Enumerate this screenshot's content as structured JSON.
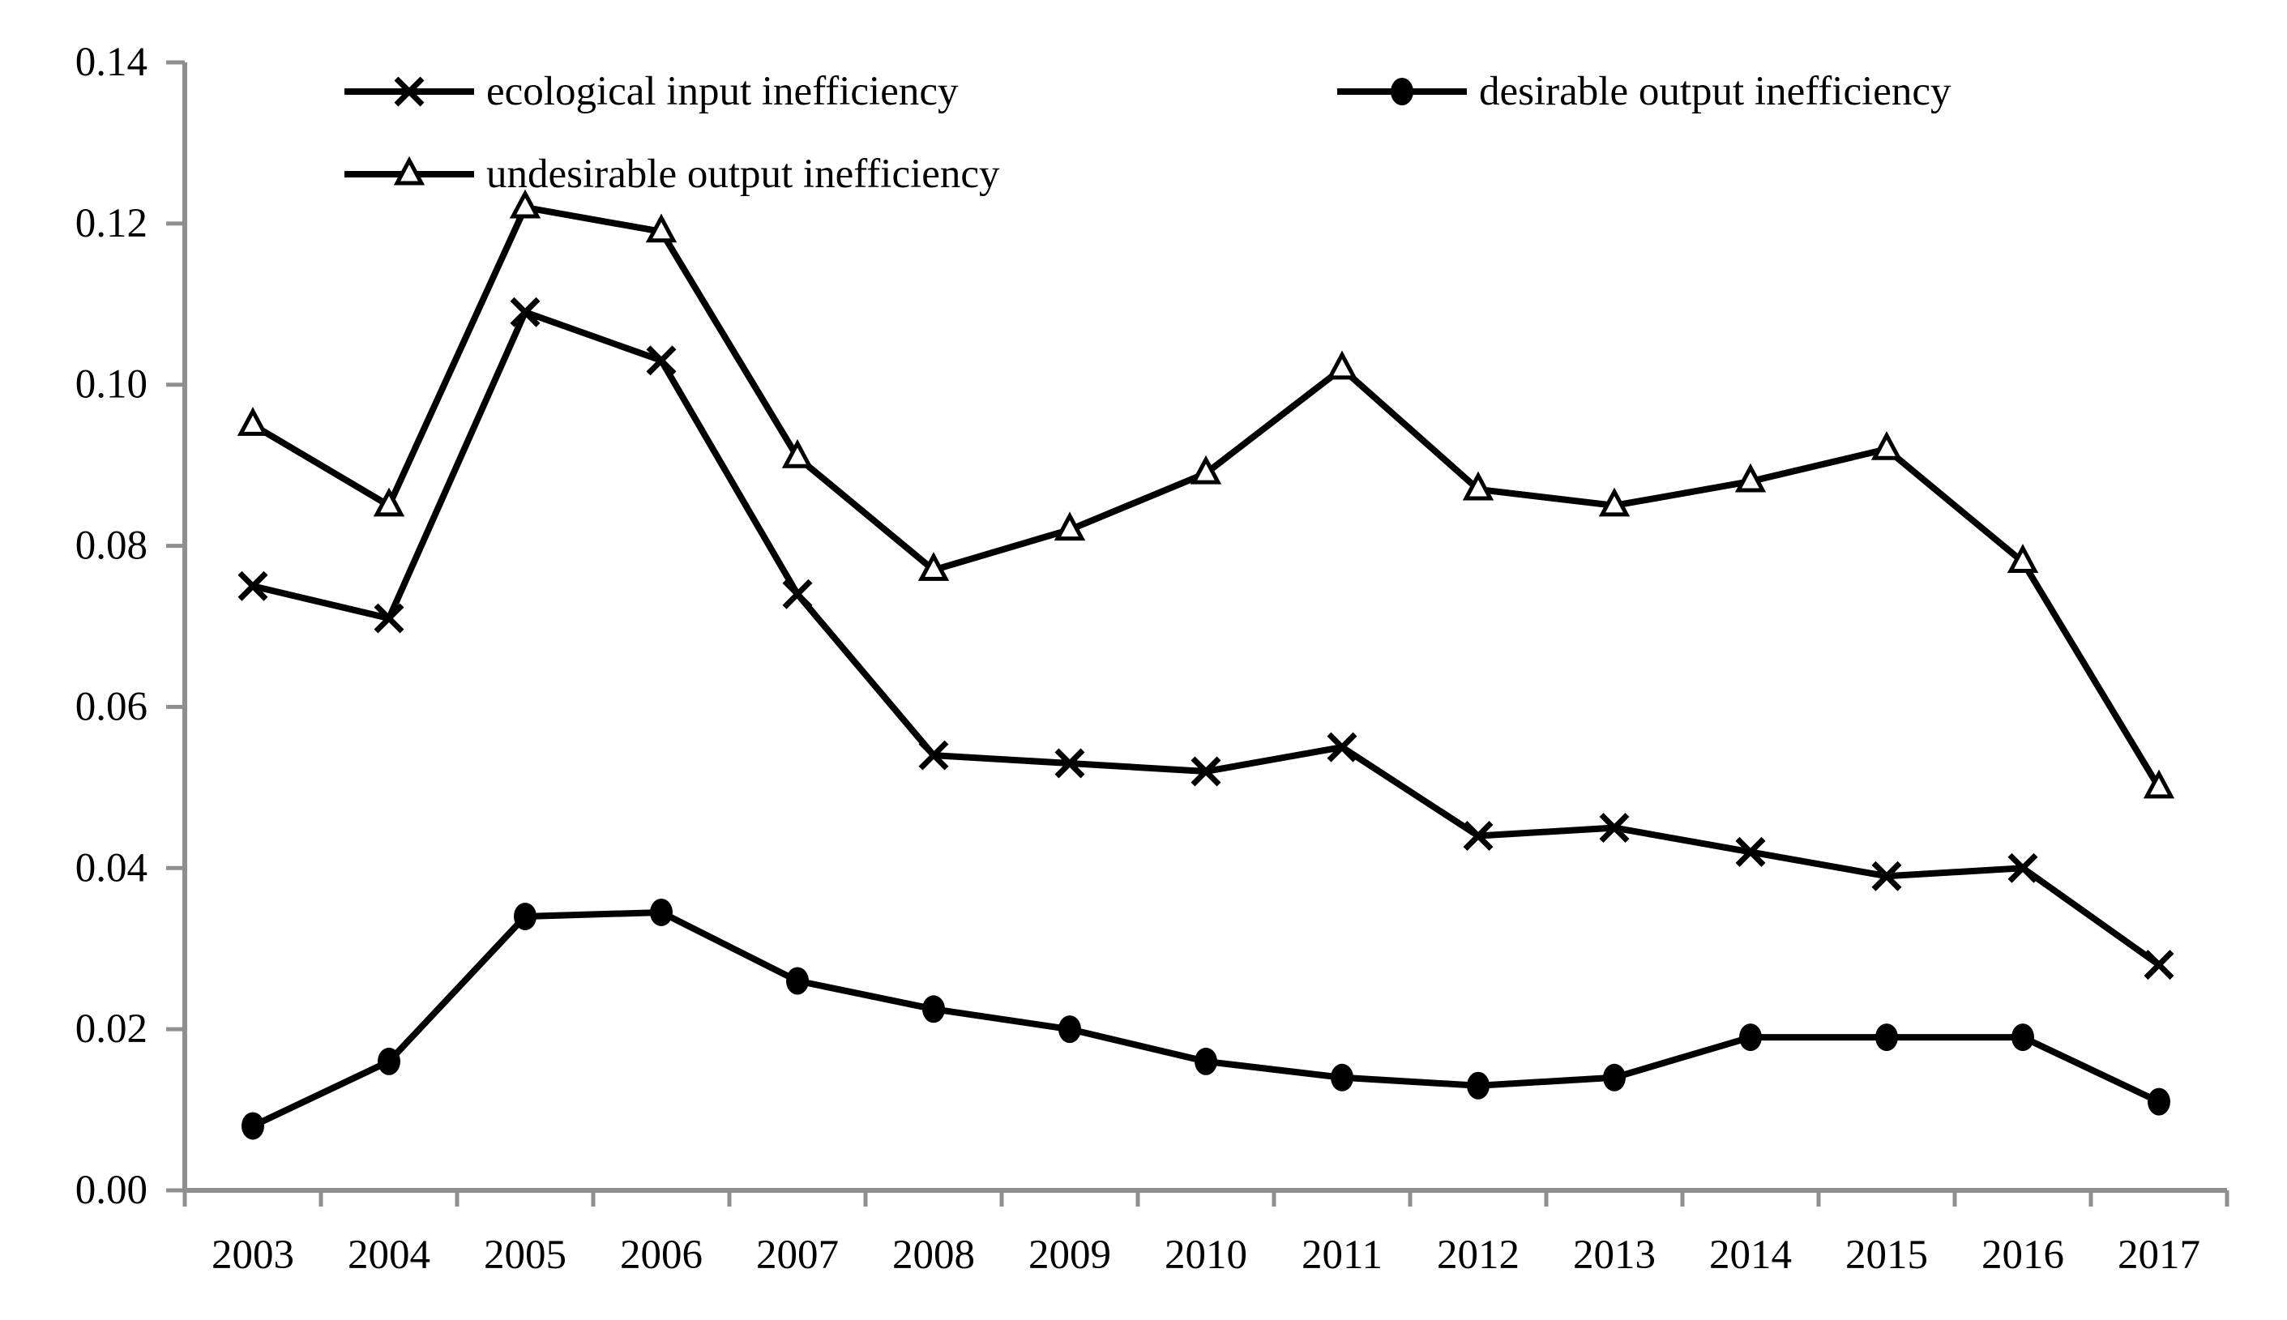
{
  "chart_data": {
    "type": "line",
    "title": "",
    "xlabel": "",
    "ylabel": "",
    "categories": [
      "2003",
      "2004",
      "2005",
      "2006",
      "2007",
      "2008",
      "2009",
      "2010",
      "2011",
      "2012",
      "2013",
      "2014",
      "2015",
      "2016",
      "2017"
    ],
    "series": [
      {
        "name": "ecological input inefficiency",
        "marker": "x-cross",
        "values": [
          0.075,
          0.071,
          0.109,
          0.103,
          0.074,
          0.054,
          0.053,
          0.052,
          0.055,
          0.044,
          0.045,
          0.042,
          0.039,
          0.04,
          0.028
        ]
      },
      {
        "name": "desirable output inefficiency",
        "marker": "filled-circle",
        "values": [
          0.008,
          0.016,
          0.034,
          0.0345,
          0.026,
          0.0225,
          0.02,
          0.016,
          0.014,
          0.013,
          0.014,
          0.019,
          0.019,
          0.019,
          0.011
        ]
      },
      {
        "name": "undesirable output inefficiency",
        "marker": "open-triangle",
        "values": [
          0.095,
          0.085,
          0.122,
          0.119,
          0.091,
          0.077,
          0.082,
          0.089,
          0.102,
          0.087,
          0.085,
          0.088,
          0.092,
          0.078,
          0.05
        ]
      }
    ],
    "ylim": [
      0,
      0.14
    ],
    "ytick_labels": [
      "0.00",
      "0.02",
      "0.04",
      "0.06",
      "0.08",
      "0.10",
      "0.12",
      "0.14"
    ],
    "grid": false,
    "legend_position": "top-left, two rows",
    "line_color": "#000000",
    "axis_color": "#8f8f8f",
    "background_color": "#ffffff"
  }
}
